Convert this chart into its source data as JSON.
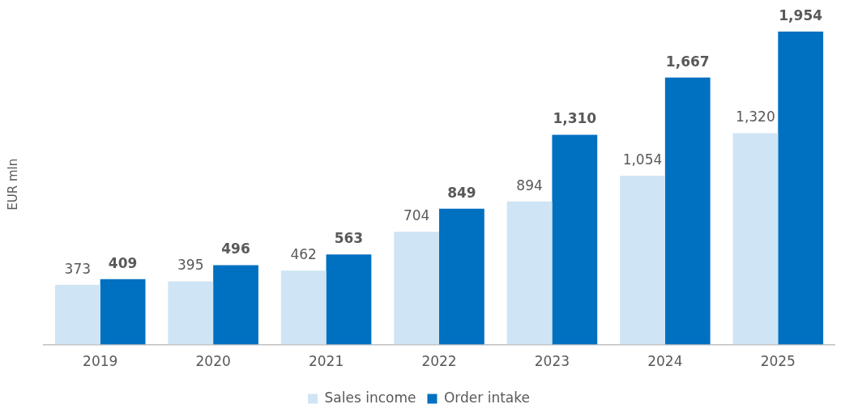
{
  "chart_data": {
    "type": "bar",
    "ylabel": "EUR mln",
    "categories": [
      "2019",
      "2020",
      "2021",
      "2022",
      "2023",
      "2024",
      "2025"
    ],
    "series": [
      {
        "name": "Sales income",
        "color": "#cfe4f4",
        "values": [
          373,
          395,
          462,
          704,
          894,
          1054,
          1320
        ],
        "value_labels": [
          "373",
          "395",
          "462",
          "704",
          "894",
          "1,054",
          "1,320"
        ]
      },
      {
        "name": "Order intake",
        "color": "#0070c0",
        "values": [
          409,
          496,
          563,
          849,
          1310,
          1667,
          1954
        ],
        "value_labels": [
          "409",
          "496",
          "563",
          "849",
          "1,310",
          "1,667",
          "1,954"
        ]
      }
    ],
    "legend": "bottom",
    "grid": false,
    "tick_labels": "x"
  }
}
